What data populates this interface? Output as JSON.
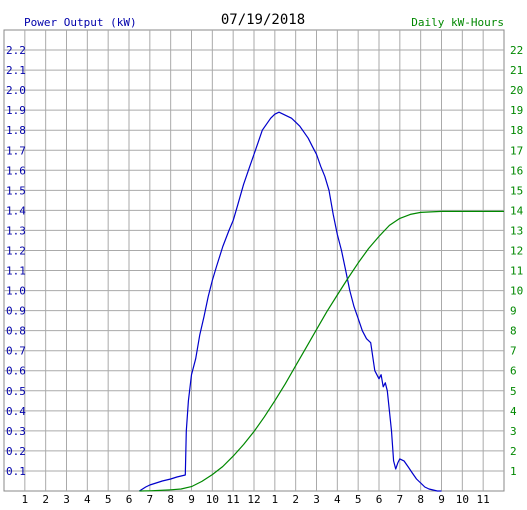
{
  "chart_data": {
    "type": "line",
    "title": "07/19/2018",
    "left_axis_label": "Power Output (kW)",
    "right_axis_label": "Daily kW-Hours",
    "x_tick_labels": [
      "1",
      "2",
      "3",
      "4",
      "5",
      "6",
      "7",
      "8",
      "9",
      "10",
      "11",
      "12",
      "1",
      "2",
      "3",
      "4",
      "5",
      "6",
      "7",
      "8",
      "9",
      "10",
      "11"
    ],
    "x_range_hours": [
      0,
      24
    ],
    "y_left_range": [
      0,
      2.3
    ],
    "y_left_ticks": [
      "0.1",
      "0.2",
      "0.3",
      "0.4",
      "0.5",
      "0.6",
      "0.7",
      "0.8",
      "0.9",
      "1.0",
      "1.1",
      "1.2",
      "1.3",
      "1.4",
      "1.5",
      "1.6",
      "1.7",
      "1.8",
      "1.9",
      "2.0",
      "2.1",
      "2.2"
    ],
    "y_right_range": [
      0,
      23
    ],
    "y_right_ticks": [
      "1",
      "2",
      "3",
      "4",
      "5",
      "6",
      "7",
      "8",
      "9",
      "10",
      "11",
      "12",
      "13",
      "14",
      "15",
      "16",
      "17",
      "18",
      "19",
      "20",
      "21",
      "22"
    ],
    "grid": true,
    "colors": {
      "power": "#0000cc",
      "energy": "#008800",
      "grid": "#aaaaaa",
      "left_labels": "#0000aa",
      "right_labels": "#008800",
      "x_labels": "#000000"
    },
    "series": [
      {
        "axis": "left",
        "color": "#0000cc",
        "x": [
          6.5,
          6.8,
          7.0,
          7.3,
          7.6,
          8.0,
          8.3,
          8.7,
          8.75,
          8.85,
          9.0,
          9.2,
          9.4,
          9.6,
          9.8,
          10.0,
          10.2,
          10.5,
          10.8,
          11.0,
          11.2,
          11.5,
          11.8,
          12.0,
          12.2,
          12.4,
          12.6,
          12.8,
          13.0,
          13.2,
          13.4,
          13.6,
          13.8,
          14.0,
          14.2,
          14.4,
          14.6,
          14.8,
          15.0,
          15.2,
          15.4,
          15.6,
          15.8,
          16.0,
          16.2,
          16.4,
          16.6,
          16.8,
          17.0,
          17.2,
          17.4,
          17.6,
          17.8,
          18.0,
          18.1,
          18.2,
          18.3,
          18.4,
          18.5,
          18.6,
          18.7,
          18.8,
          18.9,
          19.0,
          19.2,
          19.4,
          19.6,
          19.8,
          20.0,
          20.2,
          20.4,
          20.6,
          20.8,
          21.0
        ],
        "y": [
          0.0,
          0.02,
          0.03,
          0.04,
          0.05,
          0.06,
          0.07,
          0.08,
          0.3,
          0.45,
          0.58,
          0.66,
          0.78,
          0.87,
          0.97,
          1.05,
          1.12,
          1.22,
          1.3,
          1.35,
          1.42,
          1.53,
          1.62,
          1.68,
          1.74,
          1.8,
          1.83,
          1.86,
          1.88,
          1.89,
          1.88,
          1.87,
          1.86,
          1.84,
          1.82,
          1.79,
          1.76,
          1.72,
          1.68,
          1.62,
          1.57,
          1.5,
          1.38,
          1.28,
          1.2,
          1.1,
          1.0,
          0.92,
          0.86,
          0.8,
          0.76,
          0.74,
          0.6,
          0.56,
          0.58,
          0.52,
          0.54,
          0.5,
          0.4,
          0.3,
          0.15,
          0.11,
          0.14,
          0.16,
          0.15,
          0.12,
          0.09,
          0.06,
          0.04,
          0.02,
          0.01,
          0.005,
          0.0,
          0.0
        ]
      },
      {
        "axis": "right",
        "color": "#008800",
        "x": [
          6.5,
          7.0,
          7.5,
          8.0,
          8.5,
          9.0,
          9.5,
          10.0,
          10.5,
          11.0,
          11.5,
          12.0,
          12.5,
          13.0,
          13.5,
          14.0,
          14.5,
          15.0,
          15.5,
          16.0,
          16.5,
          17.0,
          17.5,
          18.0,
          18.5,
          19.0,
          19.5,
          20.0,
          21.0,
          22.0,
          23.0,
          24.0
        ],
        "y": [
          0.0,
          0.01,
          0.03,
          0.06,
          0.1,
          0.22,
          0.48,
          0.82,
          1.22,
          1.74,
          2.32,
          2.97,
          3.7,
          4.5,
          5.35,
          6.25,
          7.15,
          8.05,
          8.95,
          9.78,
          10.6,
          11.38,
          12.1,
          12.7,
          13.25,
          13.6,
          13.8,
          13.9,
          13.95,
          13.95,
          13.95,
          13.95
        ]
      }
    ]
  }
}
